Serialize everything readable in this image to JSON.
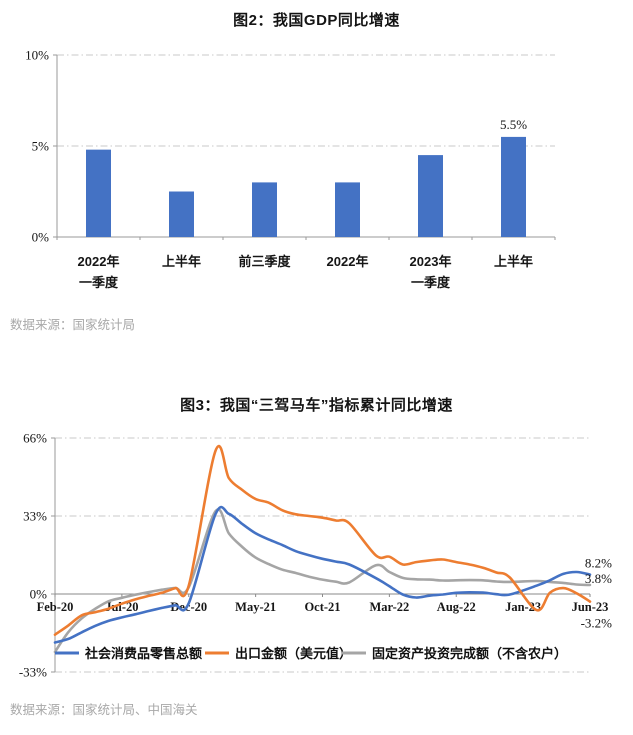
{
  "figure_gdp": {
    "title": "图2：我国GDP同比增速",
    "source": "数据来源：国家统计局"
  },
  "figure_troika": {
    "title": "图3：我国“三驾马车”指标累计同比增速",
    "source": "数据来源：国家统计局、中国海关"
  },
  "colors": {
    "series_blue": "#4472C4",
    "series_orange": "#ED7D31",
    "series_gray": "#A5A5A5",
    "grid": "#C9C9C9",
    "axis": "#9A9A9A",
    "source_text": "#A8A8A8"
  },
  "chart_data": [
    {
      "type": "bar",
      "title": "图2：我国GDP同比增速",
      "categories": [
        [
          "2022年",
          "一季度"
        ],
        [
          "上半年"
        ],
        [
          "前三季度"
        ],
        [
          "2022年"
        ],
        [
          "2023年",
          "一季度"
        ],
        [
          "上半年"
        ]
      ],
      "values": [
        4.8,
        2.5,
        3.0,
        3.0,
        4.5,
        5.5
      ],
      "data_labels": [
        null,
        null,
        null,
        null,
        null,
        "5.5%"
      ],
      "ylim": [
        0,
        10
      ],
      "yticks": [
        0,
        5,
        10
      ],
      "ytick_labels": [
        "0%",
        "5%",
        "10%"
      ],
      "bar_color": "#4472C4",
      "grid": "dashed",
      "grid_color": "#C9C9C9",
      "axis_color": "#9A9A9A",
      "source": "数据来源：国家统计局"
    },
    {
      "type": "line",
      "title": "图3：我国“三驾马车”指标累计同比增速",
      "n_points": 41,
      "x_range": [
        "Feb-20",
        "Jun-23"
      ],
      "tick_positions": [
        0,
        5,
        10,
        15,
        20,
        25,
        30,
        35,
        40
      ],
      "tick_labels": [
        "Feb-20",
        "Jul-20",
        "Dec-20",
        "May-21",
        "Oct-21",
        "Mar-22",
        "Aug-22",
        "Jan-23",
        "Jun-23"
      ],
      "ylim": [
        -33,
        66
      ],
      "yticks": [
        66,
        33,
        0,
        -33
      ],
      "ytick_labels": [
        "66%",
        "33%",
        "0%",
        "-33%"
      ],
      "grid": "dashed",
      "grid_color": "#C9C9C9",
      "axis_color": "#9A9A9A",
      "legend_position": "bottom-inside",
      "series": [
        {
          "name": "社会消费品零售总额",
          "color": "#4472C4",
          "end_label": "8.2%",
          "values": [
            -20.5,
            -19.0,
            -16.2,
            -13.5,
            -11.4,
            -9.9,
            -8.6,
            -7.2,
            -5.9,
            -4.8,
            -3.9,
            null,
            33.8,
            33.9,
            29.6,
            25.7,
            23.0,
            20.7,
            18.1,
            16.4,
            14.9,
            13.7,
            12.5,
            null,
            6.7,
            3.3,
            -0.2,
            -1.5,
            -0.7,
            -0.2,
            0.5,
            0.7,
            0.6,
            -0.1,
            -0.2,
            null,
            3.5,
            5.8,
            8.5,
            9.3,
            8.2
          ]
        },
        {
          "name": "出口金额（美元值）",
          "color": "#ED7D31",
          "end_label": "-3.2%",
          "values": [
            -17.2,
            -13.3,
            -9.0,
            -7.7,
            -6.2,
            -4.1,
            -2.3,
            -0.8,
            0.5,
            2.5,
            3.6,
            null,
            60.6,
            49.0,
            44.0,
            40.2,
            38.6,
            35.4,
            33.7,
            33.0,
            32.3,
            31.1,
            29.9,
            null,
            16.3,
            15.8,
            12.5,
            13.5,
            14.2,
            14.6,
            13.5,
            12.5,
            11.1,
            9.1,
            7.0,
            null,
            -6.8,
            0.5,
            2.5,
            0.3,
            -3.2
          ]
        },
        {
          "name": "固定资产投资完成额（不含农户）",
          "color": "#A5A5A5",
          "end_label": "3.8%",
          "values": [
            -24.5,
            -16.1,
            -10.3,
            -6.3,
            -3.1,
            -1.6,
            -0.3,
            0.8,
            1.8,
            2.6,
            2.9,
            null,
            35.0,
            25.6,
            19.9,
            15.4,
            12.6,
            10.3,
            8.9,
            7.3,
            6.1,
            5.2,
            4.9,
            null,
            12.2,
            9.3,
            6.8,
            6.2,
            6.1,
            5.7,
            5.8,
            5.9,
            5.8,
            5.3,
            5.1,
            null,
            5.5,
            5.1,
            4.7,
            4.0,
            3.8
          ]
        }
      ],
      "source": "数据来源：国家统计局、中国海关"
    }
  ]
}
